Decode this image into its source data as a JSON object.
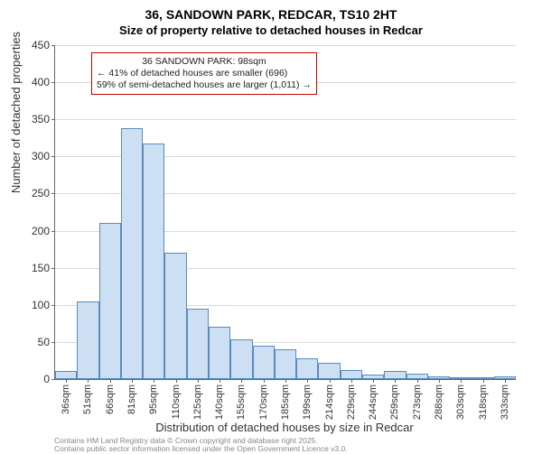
{
  "title": "36, SANDOWN PARK, REDCAR, TS10 2HT",
  "subtitle": "Size of property relative to detached houses in Redcar",
  "ylabel": "Number of detached properties",
  "xlabel": "Distribution of detached houses by size in Redcar",
  "chart": {
    "type": "histogram",
    "ylim": [
      0,
      450
    ],
    "ytick_step": 50,
    "yticks": [
      0,
      50,
      100,
      150,
      200,
      250,
      300,
      350,
      400,
      450
    ],
    "xticks": [
      "36sqm",
      "51sqm",
      "66sqm",
      "81sqm",
      "95sqm",
      "110sqm",
      "125sqm",
      "140sqm",
      "155sqm",
      "170sqm",
      "185sqm",
      "199sqm",
      "214sqm",
      "229sqm",
      "244sqm",
      "259sqm",
      "273sqm",
      "288sqm",
      "303sqm",
      "318sqm",
      "333sqm"
    ],
    "values": [
      11,
      105,
      210,
      338,
      318,
      170,
      95,
      70,
      53,
      45,
      40,
      28,
      22,
      12,
      6,
      11,
      7,
      4,
      3,
      2,
      4
    ],
    "bar_fill": "#cddff2",
    "bar_stroke": "#5a8bbf",
    "grid_color": "#666666",
    "background_color": "#ffffff",
    "title_fontsize": 14,
    "label_fontsize": 13,
    "tick_fontsize": 12
  },
  "annotation": {
    "line1": "36 SANDOWN PARK: 98sqm",
    "line2": "← 41% of detached houses are smaller (696)",
    "line3": "59% of semi-detached houses are larger (1,011) →",
    "border_color": "#cc0000",
    "fontsize": 10.5
  },
  "footer": {
    "line1": "Contains HM Land Registry data © Crown copyright and database right 2025.",
    "line2": "Contains public sector information licensed under the Open Government Licence v3.0."
  }
}
